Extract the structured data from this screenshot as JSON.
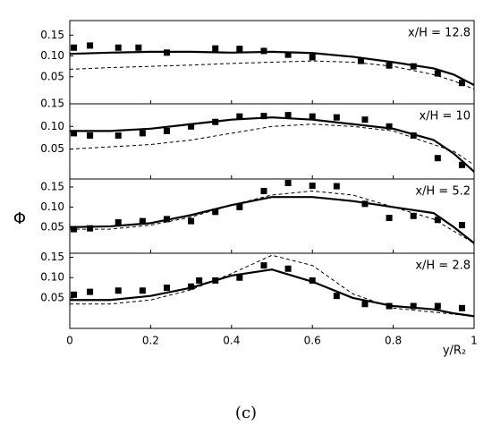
{
  "ylabel": "Φ",
  "xlabel": "y/R₂",
  "caption": "(c)",
  "chart_data": [
    {
      "type": "line",
      "annotation": "x/H = 12.8",
      "xlim": [
        0,
        1
      ],
      "xticks": [
        0,
        0.2,
        0.4,
        0.6,
        0.8,
        1
      ],
      "ylim": [
        -0.015,
        0.185
      ],
      "yticks": [
        0.05,
        {
          "value": 0.1,
          "label": "0.10"
        },
        0.15
      ],
      "series": [
        {
          "kind": "scatter",
          "color": "#000000",
          "x": [
            0.01,
            0.05,
            0.12,
            0.17,
            0.24,
            0.36,
            0.42,
            0.48,
            0.54,
            0.6,
            0.72,
            0.79,
            0.85,
            0.91,
            0.97
          ],
          "values": [
            0.12,
            0.125,
            0.12,
            0.12,
            0.108,
            0.118,
            0.117,
            0.112,
            0.103,
            0.097,
            0.088,
            0.077,
            0.075,
            0.058,
            0.035
          ]
        },
        {
          "kind": "solid",
          "color": "#000000",
          "x": [
            0,
            0.1,
            0.2,
            0.3,
            0.4,
            0.5,
            0.6,
            0.7,
            0.8,
            0.9,
            0.95,
            1
          ],
          "values": [
            0.105,
            0.108,
            0.11,
            0.11,
            0.108,
            0.11,
            0.107,
            0.098,
            0.085,
            0.07,
            0.055,
            0.03
          ]
        },
        {
          "kind": "dashed",
          "color": "#000000",
          "x": [
            0,
            0.1,
            0.2,
            0.3,
            0.4,
            0.5,
            0.6,
            0.7,
            0.8,
            0.9,
            0.95,
            1
          ],
          "values": [
            0.068,
            0.072,
            0.075,
            0.078,
            0.082,
            0.085,
            0.088,
            0.085,
            0.075,
            0.055,
            0.04,
            0.02
          ]
        }
      ]
    },
    {
      "type": "line",
      "annotation": "x/H = 10",
      "xlim": [
        0,
        1
      ],
      "xticks": [
        0,
        0.2,
        0.4,
        0.6,
        0.8,
        1
      ],
      "ylim": [
        -0.016,
        0.15
      ],
      "yticks": [
        0.05,
        {
          "value": 0.1,
          "label": "0.10"
        },
        0.15
      ],
      "series": [
        {
          "kind": "scatter",
          "color": "#000000",
          "x": [
            0.01,
            0.05,
            0.12,
            0.18,
            0.24,
            0.3,
            0.36,
            0.42,
            0.48,
            0.54,
            0.6,
            0.66,
            0.73,
            0.79,
            0.85,
            0.91,
            0.97
          ],
          "values": [
            0.085,
            0.08,
            0.08,
            0.085,
            0.09,
            0.1,
            0.11,
            0.122,
            0.123,
            0.125,
            0.122,
            0.12,
            0.115,
            0.1,
            0.08,
            0.03,
            0.015
          ]
        },
        {
          "kind": "solid",
          "color": "#000000",
          "x": [
            0,
            0.1,
            0.2,
            0.3,
            0.4,
            0.5,
            0.6,
            0.7,
            0.8,
            0.9,
            0.95,
            1
          ],
          "values": [
            0.09,
            0.09,
            0.095,
            0.105,
            0.115,
            0.12,
            0.115,
            0.105,
            0.095,
            0.07,
            0.04,
            0.0
          ]
        },
        {
          "kind": "dashed",
          "color": "#000000",
          "x": [
            0,
            0.1,
            0.2,
            0.3,
            0.4,
            0.5,
            0.6,
            0.7,
            0.8,
            0.9,
            0.95,
            1
          ],
          "values": [
            0.05,
            0.055,
            0.06,
            0.07,
            0.085,
            0.1,
            0.105,
            0.1,
            0.09,
            0.06,
            0.045,
            0.015
          ]
        }
      ]
    },
    {
      "type": "line",
      "annotation": "x/H = 5.2",
      "xlim": [
        0,
        1
      ],
      "xticks": [
        0,
        0.2,
        0.4,
        0.6,
        0.8,
        1
      ],
      "ylim": [
        -0.015,
        0.17
      ],
      "yticks": [
        0.05,
        {
          "value": 0.1,
          "label": "0.10"
        },
        0.15
      ],
      "series": [
        {
          "kind": "scatter",
          "color": "#000000",
          "x": [
            0.01,
            0.05,
            0.12,
            0.18,
            0.24,
            0.3,
            0.36,
            0.42,
            0.48,
            0.54,
            0.6,
            0.66,
            0.73,
            0.79,
            0.85,
            0.91,
            0.97
          ],
          "values": [
            0.045,
            0.047,
            0.062,
            0.065,
            0.07,
            0.065,
            0.088,
            0.1,
            0.14,
            0.16,
            0.153,
            0.152,
            0.108,
            0.073,
            0.078,
            0.068,
            0.055
          ]
        },
        {
          "kind": "solid",
          "color": "#000000",
          "x": [
            0,
            0.1,
            0.2,
            0.3,
            0.4,
            0.5,
            0.6,
            0.7,
            0.8,
            0.9,
            0.95,
            1
          ],
          "values": [
            0.05,
            0.052,
            0.06,
            0.08,
            0.105,
            0.125,
            0.125,
            0.115,
            0.1,
            0.085,
            0.05,
            0.01
          ]
        },
        {
          "kind": "dashed",
          "color": "#000000",
          "x": [
            0,
            0.1,
            0.2,
            0.3,
            0.4,
            0.5,
            0.6,
            0.7,
            0.8,
            0.9,
            0.95,
            1
          ],
          "values": [
            0.045,
            0.045,
            0.055,
            0.075,
            0.105,
            0.13,
            0.14,
            0.13,
            0.1,
            0.07,
            0.04,
            0.01
          ]
        }
      ]
    },
    {
      "type": "line",
      "annotation": "x/H = 2.8",
      "xlim": [
        0,
        1
      ],
      "xticks": [
        0,
        0.2,
        0.4,
        0.6,
        0.8,
        1
      ],
      "ylim": [
        -0.025,
        0.16
      ],
      "yticks": [
        0.05,
        {
          "value": 0.1,
          "label": "0.10"
        },
        0.15
      ],
      "series": [
        {
          "kind": "scatter",
          "color": "#000000",
          "x": [
            0.01,
            0.05,
            0.12,
            0.18,
            0.24,
            0.3,
            0.32,
            0.36,
            0.42,
            0.48,
            0.54,
            0.6,
            0.66,
            0.73,
            0.79,
            0.85,
            0.91,
            0.97
          ],
          "values": [
            0.058,
            0.065,
            0.068,
            0.068,
            0.075,
            0.078,
            0.093,
            0.093,
            0.1,
            0.13,
            0.122,
            0.093,
            0.055,
            0.035,
            0.03,
            0.03,
            0.03,
            0.025
          ]
        },
        {
          "kind": "solid",
          "color": "#000000",
          "x": [
            0,
            0.1,
            0.2,
            0.3,
            0.4,
            0.5,
            0.6,
            0.7,
            0.8,
            0.9,
            0.95,
            1
          ],
          "values": [
            0.045,
            0.045,
            0.055,
            0.075,
            0.105,
            0.12,
            0.09,
            0.05,
            0.03,
            0.022,
            0.012,
            0.005
          ]
        },
        {
          "kind": "dashed",
          "color": "#000000",
          "x": [
            0,
            0.1,
            0.2,
            0.3,
            0.4,
            0.5,
            0.6,
            0.7,
            0.8,
            0.9,
            0.95,
            1
          ],
          "values": [
            0.035,
            0.035,
            0.045,
            0.07,
            0.11,
            0.155,
            0.13,
            0.06,
            0.025,
            0.015,
            0.01,
            0.005
          ]
        }
      ]
    }
  ]
}
